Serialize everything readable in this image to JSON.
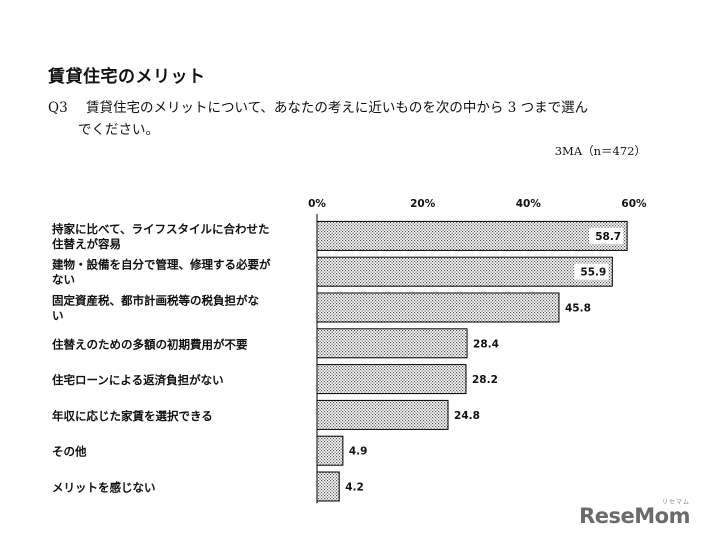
{
  "heading": "賃貸住宅のメリット",
  "question": {
    "number": "Q3",
    "line1": "賃貸住宅のメリットについて、あなたの考えに近いものを次の中から 3 つまで選ん",
    "line2": "でください。"
  },
  "sample_note": "3MA（n＝472）",
  "logo": {
    "text": "ReseMom",
    "kana": "リセマム"
  },
  "chart_data": {
    "type": "bar",
    "orientation": "horizontal",
    "title": "",
    "xlabel": "",
    "ylabel": "",
    "xlim": [
      0,
      60
    ],
    "ticks": [
      0,
      20,
      40,
      60
    ],
    "tick_labels": [
      "0%",
      "20%",
      "40%",
      "60%"
    ],
    "grid": false,
    "categories": [
      [
        "持家に比べて、ライフスタイルに合わせた",
        "住替えが容易"
      ],
      [
        "建物・設備を自分で管理、修理する必要が",
        "ない"
      ],
      [
        "固定資産税、都市計画税等の税負担がな",
        "い"
      ],
      [
        "住替えのための多額の初期費用が不要"
      ],
      [
        "住宅ローンによる返済負担がない"
      ],
      [
        "年収に応じた家賃を選択できる"
      ],
      [
        "その他"
      ],
      [
        "メリットを感じない"
      ]
    ],
    "values": [
      58.7,
      55.9,
      45.8,
      28.4,
      28.2,
      24.8,
      4.9,
      4.2
    ],
    "value_labels": [
      "58.7",
      "55.9",
      "45.8",
      "28.4",
      "28.2",
      "24.8",
      "4.9",
      "4.2"
    ],
    "bar_fill": "dotted",
    "bar_stroke": "#000000"
  }
}
